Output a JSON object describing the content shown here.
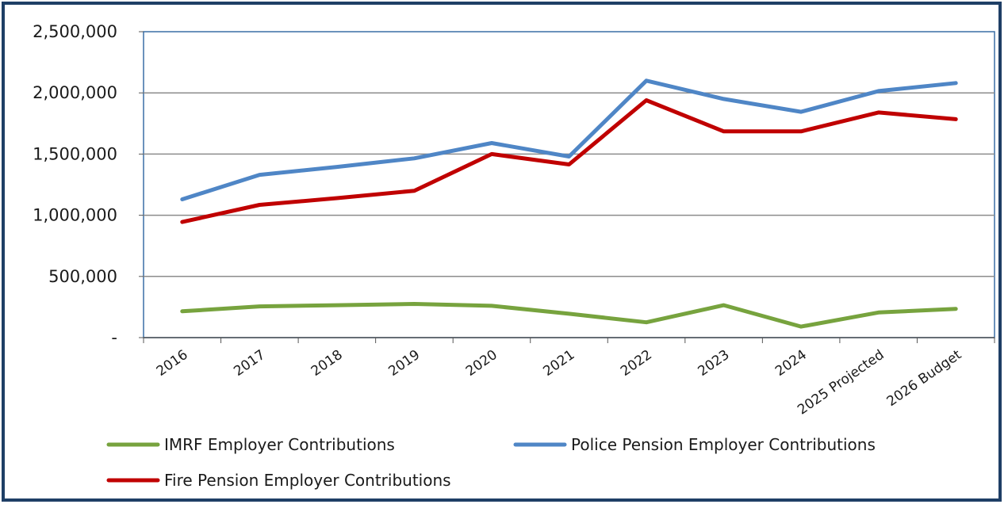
{
  "chart_data": {
    "type": "line",
    "title": "",
    "xlabel": "",
    "ylabel": "",
    "ylim": [
      0,
      2500000
    ],
    "y_ticks": [
      0,
      500000,
      1000000,
      1500000,
      2000000,
      2500000
    ],
    "y_tick_labels": [
      "-",
      "500,000",
      "1,000,000",
      "1,500,000",
      "2,000,000",
      "2,500,000"
    ],
    "grid": true,
    "legend_position": "bottom",
    "categories": [
      "2016",
      "2017",
      "2018",
      "2019",
      "2020",
      "2021",
      "2022",
      "2023",
      "2024",
      "2025 Projected",
      "2026 Budget"
    ],
    "series": [
      {
        "name": "IMRF Employer Contributions",
        "color": "#77a33e",
        "values": [
          215000,
          255000,
          265000,
          275000,
          260000,
          195000,
          125000,
          265000,
          90000,
          205000,
          235000
        ]
      },
      {
        "name": "Police Pension Employer Contributions",
        "color": "#4f86c6",
        "values": [
          1130000,
          1330000,
          1395000,
          1465000,
          1590000,
          1480000,
          2100000,
          1950000,
          1845000,
          2015000,
          2080000
        ]
      },
      {
        "name": "Fire Pension Employer Contributions",
        "color": "#c00000",
        "values": [
          945000,
          1085000,
          1140000,
          1200000,
          1500000,
          1415000,
          1940000,
          1685000,
          1685000,
          1840000,
          1785000
        ]
      }
    ]
  }
}
